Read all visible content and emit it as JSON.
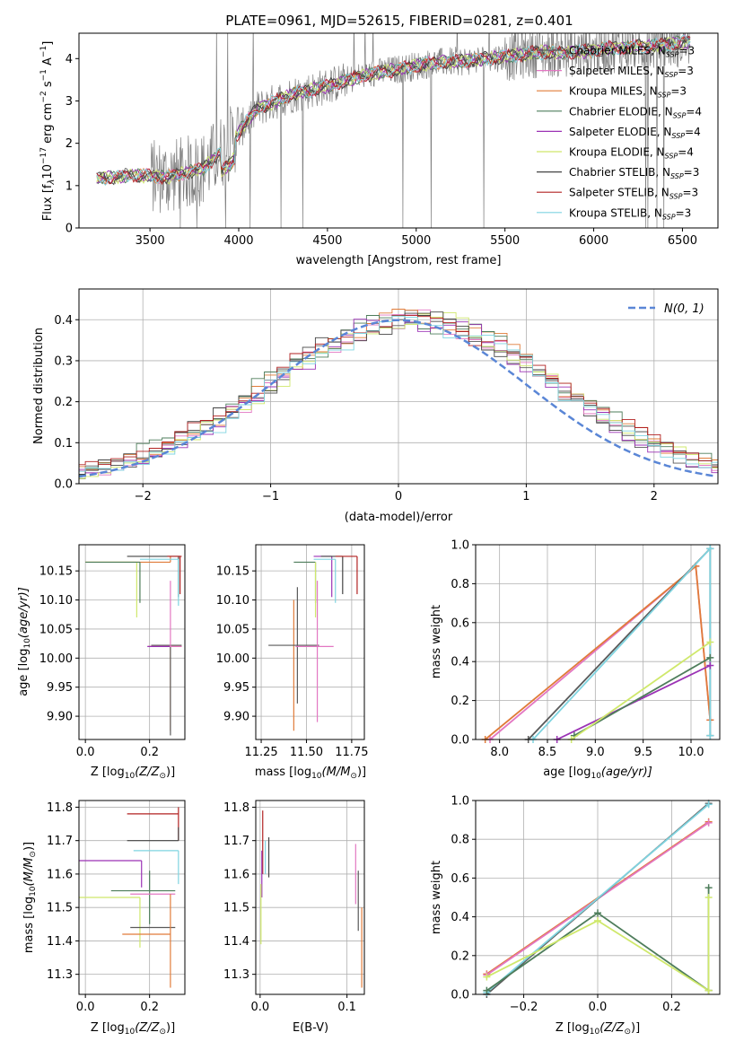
{
  "figure": {
    "title": "PLATE=0961, MJD=52615, FIBERID=0281, z=0.401"
  },
  "models": [
    {
      "label": "Chabrier MILES, N",
      "suffix": "=3",
      "color": "#5a5a5a"
    },
    {
      "label": "Salpeter MILES, N",
      "suffix": "=3",
      "color": "#e377c2"
    },
    {
      "label": "Kroupa MILES, N",
      "suffix": "=3",
      "color": "#e07b39"
    },
    {
      "label": "Chabrier ELODIE, N",
      "suffix": "=4",
      "color": "#4e7d5b"
    },
    {
      "label": "Salpeter ELODIE, N",
      "suffix": "=4",
      "color": "#9b32b5"
    },
    {
      "label": "Kroupa ELODIE, N",
      "suffix": "=4",
      "color": "#cfe86b"
    },
    {
      "label": "Chabrier STELIB, N",
      "suffix": "=3",
      "color": "#444444"
    },
    {
      "label": "Salpeter STELIB, N",
      "suffix": "=3",
      "color": "#b22222"
    },
    {
      "label": "Kroupa STELIB, N",
      "suffix": "=3",
      "color": "#7fd4e0"
    }
  ],
  "ssp_subscript": "SSP",
  "chart_data": [
    {
      "id": "spectrum",
      "type": "line",
      "xlabel": "wavelength [Angstrom, rest frame]",
      "ylabel": "Flux [f",
      "ylabel_tail": "10",
      "ylabel_exp1": "−17",
      "ylabel_units": " erg cm",
      "ylabel_exp2": "−2",
      "ylabel_s": " s",
      "ylabel_exp3": "−1",
      "ylabel_a": " A",
      "ylabel_exp4": "−1",
      "ylabel_end": "]",
      "xlim": [
        3100,
        6700
      ],
      "ylim": [
        0,
        4.6
      ],
      "xticks": [
        3500,
        4000,
        4500,
        5000,
        5500,
        6000,
        6500
      ],
      "yticks": [
        0,
        1,
        2,
        3,
        4
      ],
      "grid": false,
      "legend": "top-right",
      "continuum": [
        [
          3200,
          1.15
        ],
        [
          3400,
          1.25
        ],
        [
          3600,
          1.2
        ],
        [
          3800,
          1.4
        ],
        [
          3950,
          2.0
        ],
        [
          4100,
          2.8
        ],
        [
          4300,
          3.15
        ],
        [
          4500,
          3.35
        ],
        [
          4700,
          3.6
        ],
        [
          4900,
          3.75
        ],
        [
          5100,
          3.9
        ],
        [
          5300,
          3.95
        ],
        [
          5500,
          4.05
        ],
        [
          5700,
          4.15
        ],
        [
          5900,
          4.15
        ],
        [
          6100,
          4.25
        ],
        [
          6300,
          4.3
        ],
        [
          6550,
          4.4
        ]
      ]
    },
    {
      "id": "residuals",
      "type": "histogram",
      "xlabel": "(data-model)/error",
      "ylabel": "Normed distribution",
      "xlim": [
        -2.5,
        2.5
      ],
      "ylim": [
        0,
        0.475
      ],
      "xticks": [
        -2,
        -1,
        0,
        1,
        2
      ],
      "yticks": [
        0.0,
        0.1,
        0.2,
        0.3,
        0.4
      ],
      "grid": true,
      "legend": "top-right",
      "reference_label": "N(0, 1)",
      "reference_color": "#5a86d6",
      "bin_width": 0.1
    },
    {
      "id": "age_vs_Z",
      "type": "errorbar",
      "xlabel": "Z [log",
      "xlabel_sub": "10",
      "xlabel_rest": "(Z/Z",
      "xlabel_sun": "⊙",
      "xlabel_end": ")]",
      "ylabel": "age  [log",
      "ylabel_sub": "10",
      "ylabel_rest": "(age/yr)]",
      "xlim": [
        -0.02,
        0.31
      ],
      "ylim": [
        9.86,
        10.195
      ],
      "xticks": [
        0.0,
        0.2
      ],
      "xtick_labels": [
        "0.0",
        "0.2"
      ],
      "yticks": [
        9.9,
        9.95,
        10.0,
        10.05,
        10.1,
        10.15
      ],
      "ytick_labels": [
        "9.90",
        "9.95",
        "10.00",
        "10.05",
        "10.10",
        "10.15"
      ],
      "grid": true,
      "points": [
        {
          "x": 0.265,
          "y": 10.165,
          "xl": 0.265,
          "xh": 0.0,
          "yl": 0.0,
          "yh": 0.01,
          "c": 2
        },
        {
          "x": 0.16,
          "y": 10.165,
          "xl": 0.16,
          "xh": 0.0,
          "yl": 0.095,
          "yh": 0.0,
          "c": 5
        },
        {
          "x": 0.17,
          "y": 10.165,
          "xl": 0.17,
          "xh": 0.0,
          "yl": 0.07,
          "yh": 0.0,
          "c": 3
        },
        {
          "x": 0.29,
          "y": 10.175,
          "xl": 0.16,
          "xh": 0.005,
          "yl": 0.07,
          "yh": 0.0,
          "c": 6
        },
        {
          "x": 0.295,
          "y": 10.175,
          "xl": 0.04,
          "xh": 0.005,
          "yl": 0.065,
          "yh": 0.0,
          "c": 7
        },
        {
          "x": 0.29,
          "y": 10.17,
          "xl": 0.12,
          "xh": 0.0,
          "yl": 0.08,
          "yh": 0.0,
          "c": 8
        },
        {
          "x": 0.265,
          "y": 10.02,
          "xl": 0.07,
          "xh": 0.035,
          "yl": 0.145,
          "yh": 0.0,
          "c": 2
        },
        {
          "x": 0.265,
          "y": 10.022,
          "xl": 0.06,
          "xh": 0.035,
          "yl": 0.155,
          "yh": 0.0,
          "c": 0
        },
        {
          "x": 0.265,
          "y": 10.02,
          "xl": 0.06,
          "xh": 0.035,
          "yl": 0.0,
          "yh": 0.113,
          "c": 1
        },
        {
          "x": 0.263,
          "y": 10.02,
          "xl": 0.07,
          "xh": 0.0,
          "yl": 0.0,
          "yh": 0.0,
          "c": 4
        }
      ]
    },
    {
      "id": "age_vs_mass",
      "type": "errorbar",
      "xlabel": "mass [log",
      "xlabel_sub": "10",
      "xlabel_rest": "(M/M",
      "xlabel_sun": "⊙",
      "xlabel_end": ")]",
      "xlim": [
        11.22,
        11.82
      ],
      "ylim": [
        9.86,
        10.195
      ],
      "xticks": [
        11.25,
        11.5,
        11.75
      ],
      "xtick_labels": [
        "11.25",
        "11.50",
        "11.75"
      ],
      "yticks": [
        9.9,
        9.95,
        10.0,
        10.05,
        10.1,
        10.15
      ],
      "ytick_labels": [
        "9.90",
        "9.95",
        "10.00",
        "10.05",
        "10.10",
        "10.15"
      ],
      "grid": true,
      "points": [
        {
          "x": 11.43,
          "y": 10.02,
          "xl": 0.0,
          "xh": 0.0,
          "yl": 0.145,
          "yh": 0.08,
          "c": 2
        },
        {
          "x": 11.45,
          "y": 10.022,
          "xl": 0.16,
          "xh": 0.12,
          "yl": 0.1,
          "yh": 0.1,
          "c": 0
        },
        {
          "x": 11.56,
          "y": 10.02,
          "xl": 0.12,
          "xh": 0.09,
          "yl": 0.13,
          "yh": 0.113,
          "c": 1
        },
        {
          "x": 11.55,
          "y": 10.165,
          "xl": 0.12,
          "xh": 0.0,
          "yl": 0.07,
          "yh": 0.0,
          "c": 3
        },
        {
          "x": 11.64,
          "y": 10.175,
          "xl": 0.1,
          "xh": 0.0,
          "yl": 0.07,
          "yh": 0.0,
          "c": 4
        },
        {
          "x": 11.7,
          "y": 10.175,
          "xl": 0.12,
          "xh": 0.0,
          "yl": 0.065,
          "yh": 0.0,
          "c": 6
        },
        {
          "x": 11.78,
          "y": 10.175,
          "xl": 0.12,
          "xh": 0.0,
          "yl": 0.065,
          "yh": 0.0,
          "c": 7
        },
        {
          "x": 11.66,
          "y": 10.17,
          "xl": 0.12,
          "xh": 0.0,
          "yl": 0.075,
          "yh": 0.0,
          "c": 8
        },
        {
          "x": 11.55,
          "y": 10.165,
          "xl": 0.0,
          "xh": 0.0,
          "yl": 0.095,
          "yh": 0.0,
          "c": 5
        }
      ]
    },
    {
      "id": "mass_vs_Z",
      "type": "errorbar",
      "xlabel": "Z [log",
      "xlabel_sub": "10",
      "xlabel_rest": "(Z/Z",
      "xlabel_sun": "⊙",
      "xlabel_end": ")]",
      "ylabel": "mass [log",
      "ylabel_sub": "10",
      "ylabel_rest": "(M/M",
      "ylabel_sun": "⊙",
      "ylabel_end": ")]",
      "xlim": [
        -0.02,
        0.31
      ],
      "ylim": [
        11.24,
        11.82
      ],
      "xticks": [
        0.0,
        0.2
      ],
      "xtick_labels": [
        "0.0",
        "0.2"
      ],
      "yticks": [
        11.3,
        11.4,
        11.5,
        11.6,
        11.7,
        11.8
      ],
      "ytick_labels": [
        "11.3",
        "11.4",
        "11.5",
        "11.6",
        "11.7",
        "11.8"
      ],
      "grid": true,
      "points": [
        {
          "x": 0.29,
          "y": 11.78,
          "xl": 0.16,
          "xh": 0.0,
          "yl": 0.08,
          "yh": 0.02,
          "c": 7
        },
        {
          "x": 0.29,
          "y": 11.7,
          "xl": 0.16,
          "xh": 0.0,
          "yl": 0.0,
          "yh": 0.04,
          "c": 6
        },
        {
          "x": 0.29,
          "y": 11.67,
          "xl": 0.14,
          "xh": 0.0,
          "yl": 0.1,
          "yh": 0.0,
          "c": 8
        },
        {
          "x": 0.175,
          "y": 11.64,
          "xl": 0.2,
          "xh": 0.0,
          "yl": 0.08,
          "yh": 0.0,
          "c": 4
        },
        {
          "x": 0.28,
          "y": 11.55,
          "xl": 0.2,
          "xh": 0.0,
          "yl": 0.0,
          "yh": 0.0,
          "c": 3
        },
        {
          "x": 0.2,
          "y": 11.55,
          "xl": 0.0,
          "xh": 0.0,
          "yl": 0.1,
          "yh": 0.06,
          "c": 3
        },
        {
          "x": 0.28,
          "y": 11.54,
          "xl": 0.14,
          "xh": 0.0,
          "yl": 0.0,
          "yh": 0.0,
          "c": 1
        },
        {
          "x": 0.17,
          "y": 11.53,
          "xl": 0.19,
          "xh": 0.0,
          "yl": 0.15,
          "yh": 0.0,
          "c": 5
        },
        {
          "x": 0.28,
          "y": 11.44,
          "xl": 0.14,
          "xh": 0.0,
          "yl": 0.0,
          "yh": 0.0,
          "c": 0
        },
        {
          "x": 0.265,
          "y": 11.42,
          "xl": 0.15,
          "xh": 0.0,
          "yl": 0.16,
          "yh": 0.12,
          "c": 2
        }
      ]
    },
    {
      "id": "mass_vs_EBV",
      "type": "errorbar",
      "xlabel": "E(B-V)",
      "xlim": [
        -0.005,
        0.12
      ],
      "ylim": [
        11.24,
        11.82
      ],
      "xticks": [
        0.0,
        0.1
      ],
      "xtick_labels": [
        "0.0",
        "0.1"
      ],
      "yticks": [
        11.3,
        11.4,
        11.5,
        11.6,
        11.7,
        11.8
      ],
      "ytick_labels": [
        "11.3",
        "11.4",
        "11.5",
        "11.6",
        "11.7",
        "11.8"
      ],
      "grid": true,
      "points": [
        {
          "x": 0.003,
          "y": 11.72,
          "xl": 0.0,
          "xh": 0.0,
          "yl": 0.12,
          "yh": 0.07,
          "c": 7
        },
        {
          "x": 0.01,
          "y": 11.65,
          "xl": 0.0,
          "xh": 0.0,
          "yl": 0.06,
          "yh": 0.06,
          "c": 6
        },
        {
          "x": 0.006,
          "y": 11.66,
          "xl": 0.0,
          "xh": 0.0,
          "yl": 0.06,
          "yh": 0.04,
          "c": 8
        },
        {
          "x": 0.002,
          "y": 11.6,
          "xl": 0.0,
          "xh": 0.0,
          "yl": 0.07,
          "yh": 0.07,
          "c": 4
        },
        {
          "x": 0.001,
          "y": 11.47,
          "xl": 0.0,
          "xh": 0.0,
          "yl": 0.08,
          "yh": 0.1,
          "c": 5
        },
        {
          "x": 0.11,
          "y": 11.6,
          "xl": 0.0,
          "xh": 0.0,
          "yl": 0.09,
          "yh": 0.09,
          "c": 1
        },
        {
          "x": 0.113,
          "y": 11.52,
          "xl": 0.0,
          "xh": 0.0,
          "yl": 0.09,
          "yh": 0.09,
          "c": 0
        },
        {
          "x": 0.117,
          "y": 11.38,
          "xl": 0.0,
          "xh": 0.0,
          "yl": 0.12,
          "yh": 0.12,
          "c": 2
        }
      ]
    },
    {
      "id": "weight_vs_age",
      "type": "line",
      "xlabel": "age  [log",
      "xlabel_sub": "10",
      "xlabel_rest": "(age/yr)]",
      "ylabel": "mass weight",
      "xlim": [
        7.75,
        10.3
      ],
      "ylim": [
        0,
        1
      ],
      "xticks": [
        8.0,
        8.5,
        9.0,
        9.5,
        10.0
      ],
      "xtick_labels": [
        "8.0",
        "8.5",
        "9.0",
        "9.5",
        "10.0"
      ],
      "yticks": [
        0,
        0.2,
        0.4,
        0.6,
        0.8,
        1.0
      ],
      "ytick_labels": [
        "0.0",
        "0.2",
        "0.4",
        "0.6",
        "0.8",
        "1.0"
      ],
      "grid": true,
      "series": [
        {
          "c": 1,
          "x": [
            7.9,
            10.05,
            10.2
          ],
          "y": [
            0.0,
            0.89,
            0.1
          ]
        },
        {
          "c": 2,
          "x": [
            7.85,
            10.05,
            10.2
          ],
          "y": [
            0.0,
            0.89,
            0.1
          ]
        },
        {
          "c": 0,
          "x": [
            8.3,
            10.2,
            10.2
          ],
          "y": [
            0.0,
            0.98,
            0.02
          ]
        },
        {
          "c": 8,
          "x": [
            8.35,
            10.2,
            10.2
          ],
          "y": [
            0.0,
            0.98,
            0.02
          ]
        },
        {
          "c": 4,
          "x": [
            8.6,
            10.2
          ],
          "y": [
            0.0,
            0.38
          ]
        },
        {
          "c": 3,
          "x": [
            8.78,
            10.2
          ],
          "y": [
            0.02,
            0.42
          ]
        },
        {
          "c": 5,
          "x": [
            8.75,
            10.2
          ],
          "y": [
            0.0,
            0.5
          ]
        }
      ]
    },
    {
      "id": "weight_vs_Z",
      "type": "line",
      "xlabel": "Z [log",
      "xlabel_sub": "10",
      "xlabel_rest": "(Z/Z",
      "xlabel_sun": "⊙",
      "xlabel_end": ")]",
      "ylabel": "mass weight",
      "xlim": [
        -0.33,
        0.33
      ],
      "ylim": [
        0,
        1
      ],
      "xticks": [
        -0.2,
        0.0,
        0.2
      ],
      "xtick_labels": [
        "−0.2",
        "0.0",
        "0.2"
      ],
      "yticks": [
        0,
        0.2,
        0.4,
        0.6,
        0.8,
        1.0
      ],
      "ytick_labels": [
        "0.0",
        "0.2",
        "0.4",
        "0.6",
        "0.8",
        "1.0"
      ],
      "grid": true,
      "series": [
        {
          "c": 2,
          "x": [
            -0.3,
            0.3
          ],
          "y": [
            0.105,
            0.89
          ]
        },
        {
          "c": 1,
          "x": [
            -0.3,
            0.3
          ],
          "y": [
            0.1,
            0.885
          ]
        },
        {
          "c": 0,
          "x": [
            -0.3,
            0.3
          ],
          "y": [
            0.0,
            0.985
          ]
        },
        {
          "c": 8,
          "x": [
            -0.3,
            0.3
          ],
          "y": [
            0.01,
            0.98
          ]
        },
        {
          "c": 3,
          "x": [
            -0.3,
            0.0,
            0.3
          ],
          "y": [
            0.02,
            0.42,
            0.02
          ]
        },
        {
          "c": 5,
          "x": [
            -0.3,
            0.0,
            0.3
          ],
          "y": [
            0.09,
            0.38,
            0.02
          ]
        },
        {
          "c": 3,
          "x": [
            0.3,
            0.3
          ],
          "y": [
            0.02,
            0.55
          ]
        },
        {
          "c": 5,
          "x": [
            0.3,
            0.3
          ],
          "y": [
            0.02,
            0.5
          ]
        }
      ]
    }
  ]
}
